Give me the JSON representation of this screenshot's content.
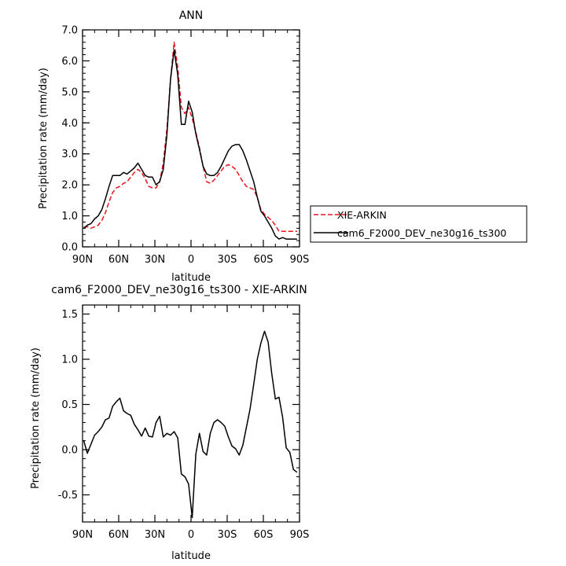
{
  "chart_data": [
    {
      "type": "line",
      "title": "ANN",
      "xlabel": "latitude",
      "ylabel": "Precipitation rate (mm/day)",
      "xlim": [
        90,
        -90
      ],
      "ylim": [
        0,
        7
      ],
      "x_ticks": [
        90,
        60,
        30,
        0,
        -30,
        -60,
        -90
      ],
      "x_tick_labels": [
        "90N",
        "60N",
        "30N",
        "0",
        "30S",
        "60S",
        "90S"
      ],
      "y_ticks": [
        0,
        1,
        2,
        3,
        4,
        5,
        6,
        7
      ],
      "y_tick_labels": [
        "0.0",
        "1.0",
        "2.0",
        "3.0",
        "4.0",
        "5.0",
        "6.0",
        "7.0"
      ],
      "grid": false,
      "legend": "right",
      "series": [
        {
          "name": "XIE-ARKIN",
          "color": "#e8141b",
          "dash": "dashed",
          "x": [
            89,
            86,
            83,
            80,
            77,
            74,
            71,
            68,
            65,
            62,
            59,
            56,
            53,
            50,
            47,
            44,
            41,
            38,
            35,
            32,
            29,
            26,
            23,
            20,
            17,
            14,
            11,
            8,
            5,
            2,
            -1,
            -4,
            -7,
            -10,
            -13,
            -16,
            -19,
            -22,
            -25,
            -28,
            -31,
            -34,
            -37,
            -40,
            -43,
            -46,
            -49,
            -52,
            -55,
            -58,
            -61,
            -64,
            -67,
            -70,
            -73,
            -76,
            -79,
            -82,
            -85,
            -88
          ],
          "y": [
            0.63,
            0.65,
            0.6,
            0.65,
            0.7,
            0.85,
            1.1,
            1.45,
            1.75,
            1.9,
            1.95,
            2.05,
            2.1,
            2.25,
            2.4,
            2.5,
            2.4,
            2.2,
            1.95,
            1.9,
            1.9,
            2.1,
            2.7,
            3.8,
            5.4,
            6.6,
            5.8,
            4.5,
            4.3,
            4.5,
            4.15,
            3.7,
            3.2,
            2.6,
            2.1,
            2.05,
            2.15,
            2.3,
            2.45,
            2.6,
            2.65,
            2.6,
            2.5,
            2.3,
            2.1,
            1.95,
            1.9,
            1.85,
            1.6,
            1.2,
            1.05,
            0.95,
            0.85,
            0.7,
            0.5,
            0.5,
            0.5,
            0.5,
            0.5,
            0.5
          ]
        },
        {
          "name": "cam6_F2000_DEV_ne30g16_ts300",
          "color": "#000000",
          "dash": "solid",
          "x": [
            89,
            86,
            83,
            80,
            77,
            74,
            71,
            68,
            65,
            62,
            59,
            56,
            53,
            50,
            47,
            44,
            41,
            38,
            35,
            32,
            29,
            26,
            23,
            20,
            17,
            14,
            11,
            8,
            5,
            2,
            -1,
            -4,
            -7,
            -10,
            -13,
            -16,
            -19,
            -22,
            -25,
            -28,
            -31,
            -34,
            -37,
            -40,
            -43,
            -46,
            -49,
            -52,
            -55,
            -58,
            -61,
            -64,
            -67,
            -70,
            -73,
            -76,
            -79,
            -82,
            -85,
            -88
          ],
          "y": [
            0.6,
            0.7,
            0.75,
            0.9,
            1.0,
            1.2,
            1.55,
            1.95,
            2.3,
            2.3,
            2.3,
            2.4,
            2.35,
            2.45,
            2.55,
            2.7,
            2.5,
            2.3,
            2.25,
            2.25,
            2.0,
            2.1,
            2.5,
            3.6,
            5.4,
            6.35,
            5.55,
            3.95,
            3.95,
            4.7,
            4.35,
            3.65,
            3.15,
            2.6,
            2.35,
            2.3,
            2.3,
            2.4,
            2.6,
            2.85,
            3.1,
            3.25,
            3.3,
            3.3,
            3.1,
            2.8,
            2.45,
            2.1,
            1.6,
            1.15,
            1.0,
            0.8,
            0.6,
            0.35,
            0.25,
            0.3,
            0.25,
            0.25,
            0.25,
            0.25
          ]
        }
      ]
    },
    {
      "type": "line",
      "title": "cam6_F2000_DEV_ne30g16_ts300 - XIE-ARKIN",
      "xlabel": "latitude",
      "ylabel": "Precipitation rate (mm/day)",
      "xlim": [
        90,
        -90
      ],
      "ylim": [
        -0.8,
        1.6
      ],
      "x_ticks": [
        90,
        60,
        30,
        0,
        -30,
        -60,
        -90
      ],
      "x_tick_labels": [
        "90N",
        "60N",
        "30N",
        "0",
        "30S",
        "60S",
        "90S"
      ],
      "y_ticks": [
        1.5,
        1.0,
        0.5,
        0.0,
        -0.5
      ],
      "y_tick_labels": [
        "1.5",
        "1.0",
        "0.5",
        "0.0",
        "-0.5"
      ],
      "grid": false,
      "series": [
        {
          "color": "#000000",
          "dash": "solid",
          "x": [
            89,
            86,
            83,
            80,
            77,
            74,
            71,
            68,
            65,
            62,
            59,
            56,
            53,
            50,
            47,
            44,
            41,
            38,
            35,
            32,
            29,
            26,
            23,
            20,
            17,
            14,
            11,
            8,
            5,
            2,
            -1,
            -4,
            -7,
            -10,
            -13,
            -16,
            -19,
            -22,
            -25,
            -28,
            -31,
            -34,
            -37,
            -40,
            -43,
            -46,
            -49,
            -52,
            -55,
            -58,
            -61,
            -64,
            -67,
            -70,
            -73,
            -76,
            -79,
            -82,
            -85,
            -88
          ],
          "y": [
            0.1,
            -0.04,
            0.06,
            0.16,
            0.2,
            0.25,
            0.33,
            0.35,
            0.48,
            0.53,
            0.57,
            0.43,
            0.4,
            0.38,
            0.28,
            0.22,
            0.15,
            0.24,
            0.15,
            0.14,
            0.3,
            0.37,
            0.14,
            0.18,
            0.16,
            0.2,
            0.13,
            -0.27,
            -0.3,
            -0.38,
            -0.75,
            -0.05,
            0.18,
            -0.02,
            -0.06,
            0.18,
            0.3,
            0.33,
            0.3,
            0.26,
            0.14,
            0.04,
            0.01,
            -0.06,
            0.05,
            0.25,
            0.45,
            0.72,
            1.0,
            1.18,
            1.31,
            1.19,
            0.84,
            0.56,
            0.58,
            0.36,
            0.02,
            -0.03,
            -0.22,
            -0.25
          ]
        }
      ]
    }
  ]
}
